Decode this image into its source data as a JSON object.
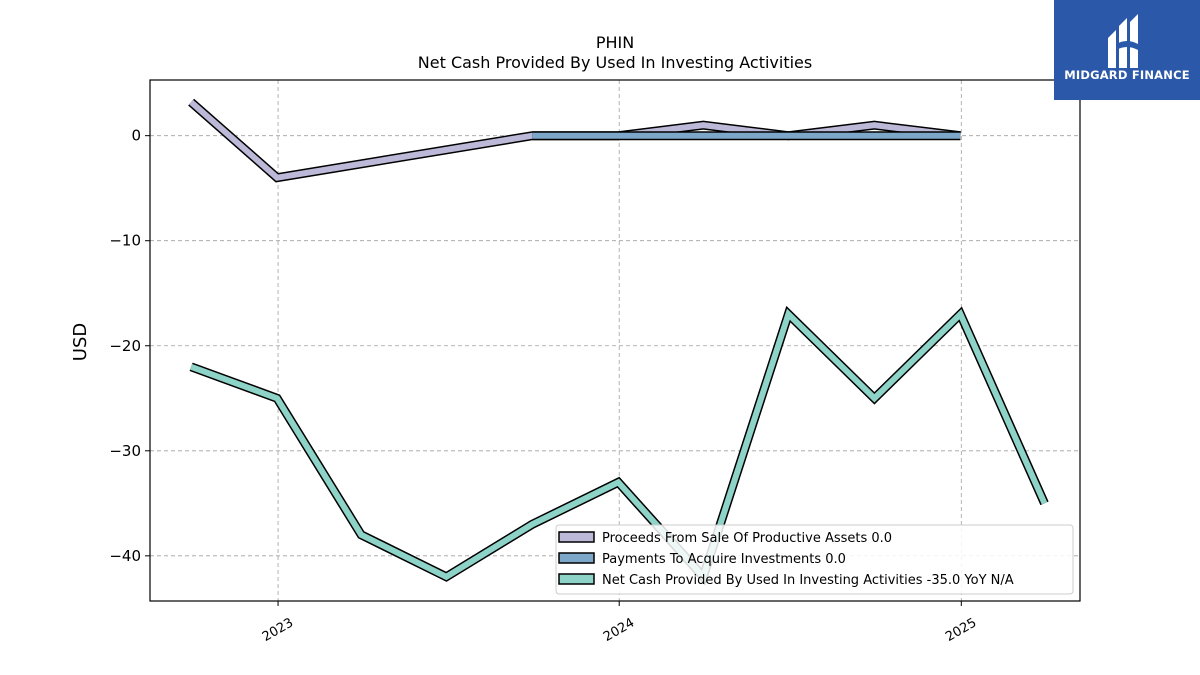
{
  "logo": {
    "text": "MIDGARD FINANCE"
  },
  "chart_data": {
    "type": "line",
    "title": "PHIN",
    "subtitle": "Net Cash Provided By Used In Investing Activities",
    "ylabel": "USD",
    "xlabel": "",
    "ylim": [
      -44.3,
      5.3
    ],
    "yticks": [
      0,
      -10,
      -20,
      -30,
      -40
    ],
    "ytick_labels": [
      "0",
      "−10",
      "−20",
      "−30",
      "−40"
    ],
    "xlim": [
      "2022-08-17",
      "2025-05-08"
    ],
    "xticks": [
      "2023-01-01",
      "2024-01-01",
      "2025-01-01"
    ],
    "xtick_labels": [
      "2023",
      "2024",
      "2025"
    ],
    "grid": true,
    "legend_position": "lower-right",
    "series": [
      {
        "name": "Proceeds From Sale Of Productive Assets",
        "legend_value": "0.0",
        "color": "#bcb8d8",
        "x": [
          "2022-09-30",
          "2022-12-31",
          "2023-09-30",
          "2023-12-31",
          "2024-03-31",
          "2024-06-30",
          "2024-09-30",
          "2024-12-31"
        ],
        "values": [
          3.2,
          -4.0,
          0.0,
          0.0,
          1.0,
          0.0,
          1.0,
          0.0
        ]
      },
      {
        "name": "Payments To Acquire Investments",
        "legend_value": "0.0",
        "color": "#7da7c8",
        "x": [
          "2023-09-30",
          "2023-12-31",
          "2024-03-31",
          "2024-06-30",
          "2024-09-30",
          "2024-12-31"
        ],
        "values": [
          0.0,
          0.0,
          0.0,
          0.0,
          0.0,
          0.0
        ]
      },
      {
        "name": "Net Cash Provided By Used In Investing Activities",
        "legend_value": "-35.0 YoY N/A",
        "color": "#8dd3c7",
        "x": [
          "2022-09-30",
          "2022-12-31",
          "2023-03-31",
          "2023-06-30",
          "2023-09-30",
          "2023-12-31",
          "2024-03-31",
          "2024-06-30",
          "2024-09-30",
          "2024-12-31",
          "2025-03-31"
        ],
        "values": [
          -22.0,
          -25.0,
          -38.0,
          -42.0,
          -37.0,
          -33.0,
          -42.0,
          -17.0,
          -25.0,
          -17.0,
          -35.0
        ]
      }
    ]
  }
}
